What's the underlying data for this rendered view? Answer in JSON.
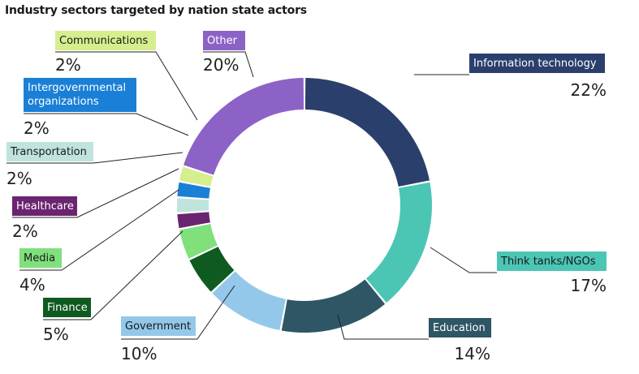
{
  "chart_data": {
    "type": "pie",
    "title": "Industry sectors targeted by nation state actors",
    "slices": [
      {
        "label": "Information technology",
        "value_label": "22%",
        "value": 22,
        "color": "#2b3f6c",
        "label_color": "#ffffff"
      },
      {
        "label": "Think tanks/NGOs",
        "value_label": "17%",
        "value": 17,
        "color": "#4bc6b4",
        "label_color": "#1a1a1a"
      },
      {
        "label": "Education",
        "value_label": "14%",
        "value": 14,
        "color": "#2f5664",
        "label_color": "#ffffff"
      },
      {
        "label": "Government",
        "value_label": "10%",
        "value": 10,
        "color": "#93c8ea",
        "label_color": "#1a1a1a"
      },
      {
        "label": "Finance",
        "value_label": "5%",
        "value": 5,
        "color": "#0f5a20",
        "label_color": "#ffffff"
      },
      {
        "label": "Media",
        "value_label": "4%",
        "value": 4,
        "color": "#7fe07c",
        "label_color": "#1a1a1a"
      },
      {
        "label": "Healthcare",
        "value_label": "2%",
        "value": 2,
        "color": "#6b2470",
        "label_color": "#ffffff"
      },
      {
        "label": "Transportation",
        "value_label": "2%",
        "value": 2,
        "color": "#bfe4dd",
        "label_color": "#1a1a1a"
      },
      {
        "label": "Intergovernmental organizations",
        "value_label": "2%",
        "value": 2,
        "color": "#1a7fd6",
        "label_color": "#ffffff"
      },
      {
        "label": "Communications",
        "value_label": "2%",
        "value": 2,
        "color": "#d6ef8e",
        "label_color": "#1a1a1a"
      },
      {
        "label": "Other",
        "value_label": "20%",
        "value": 20,
        "color": "#8c62c6",
        "label_color": "#ffffff"
      }
    ]
  }
}
